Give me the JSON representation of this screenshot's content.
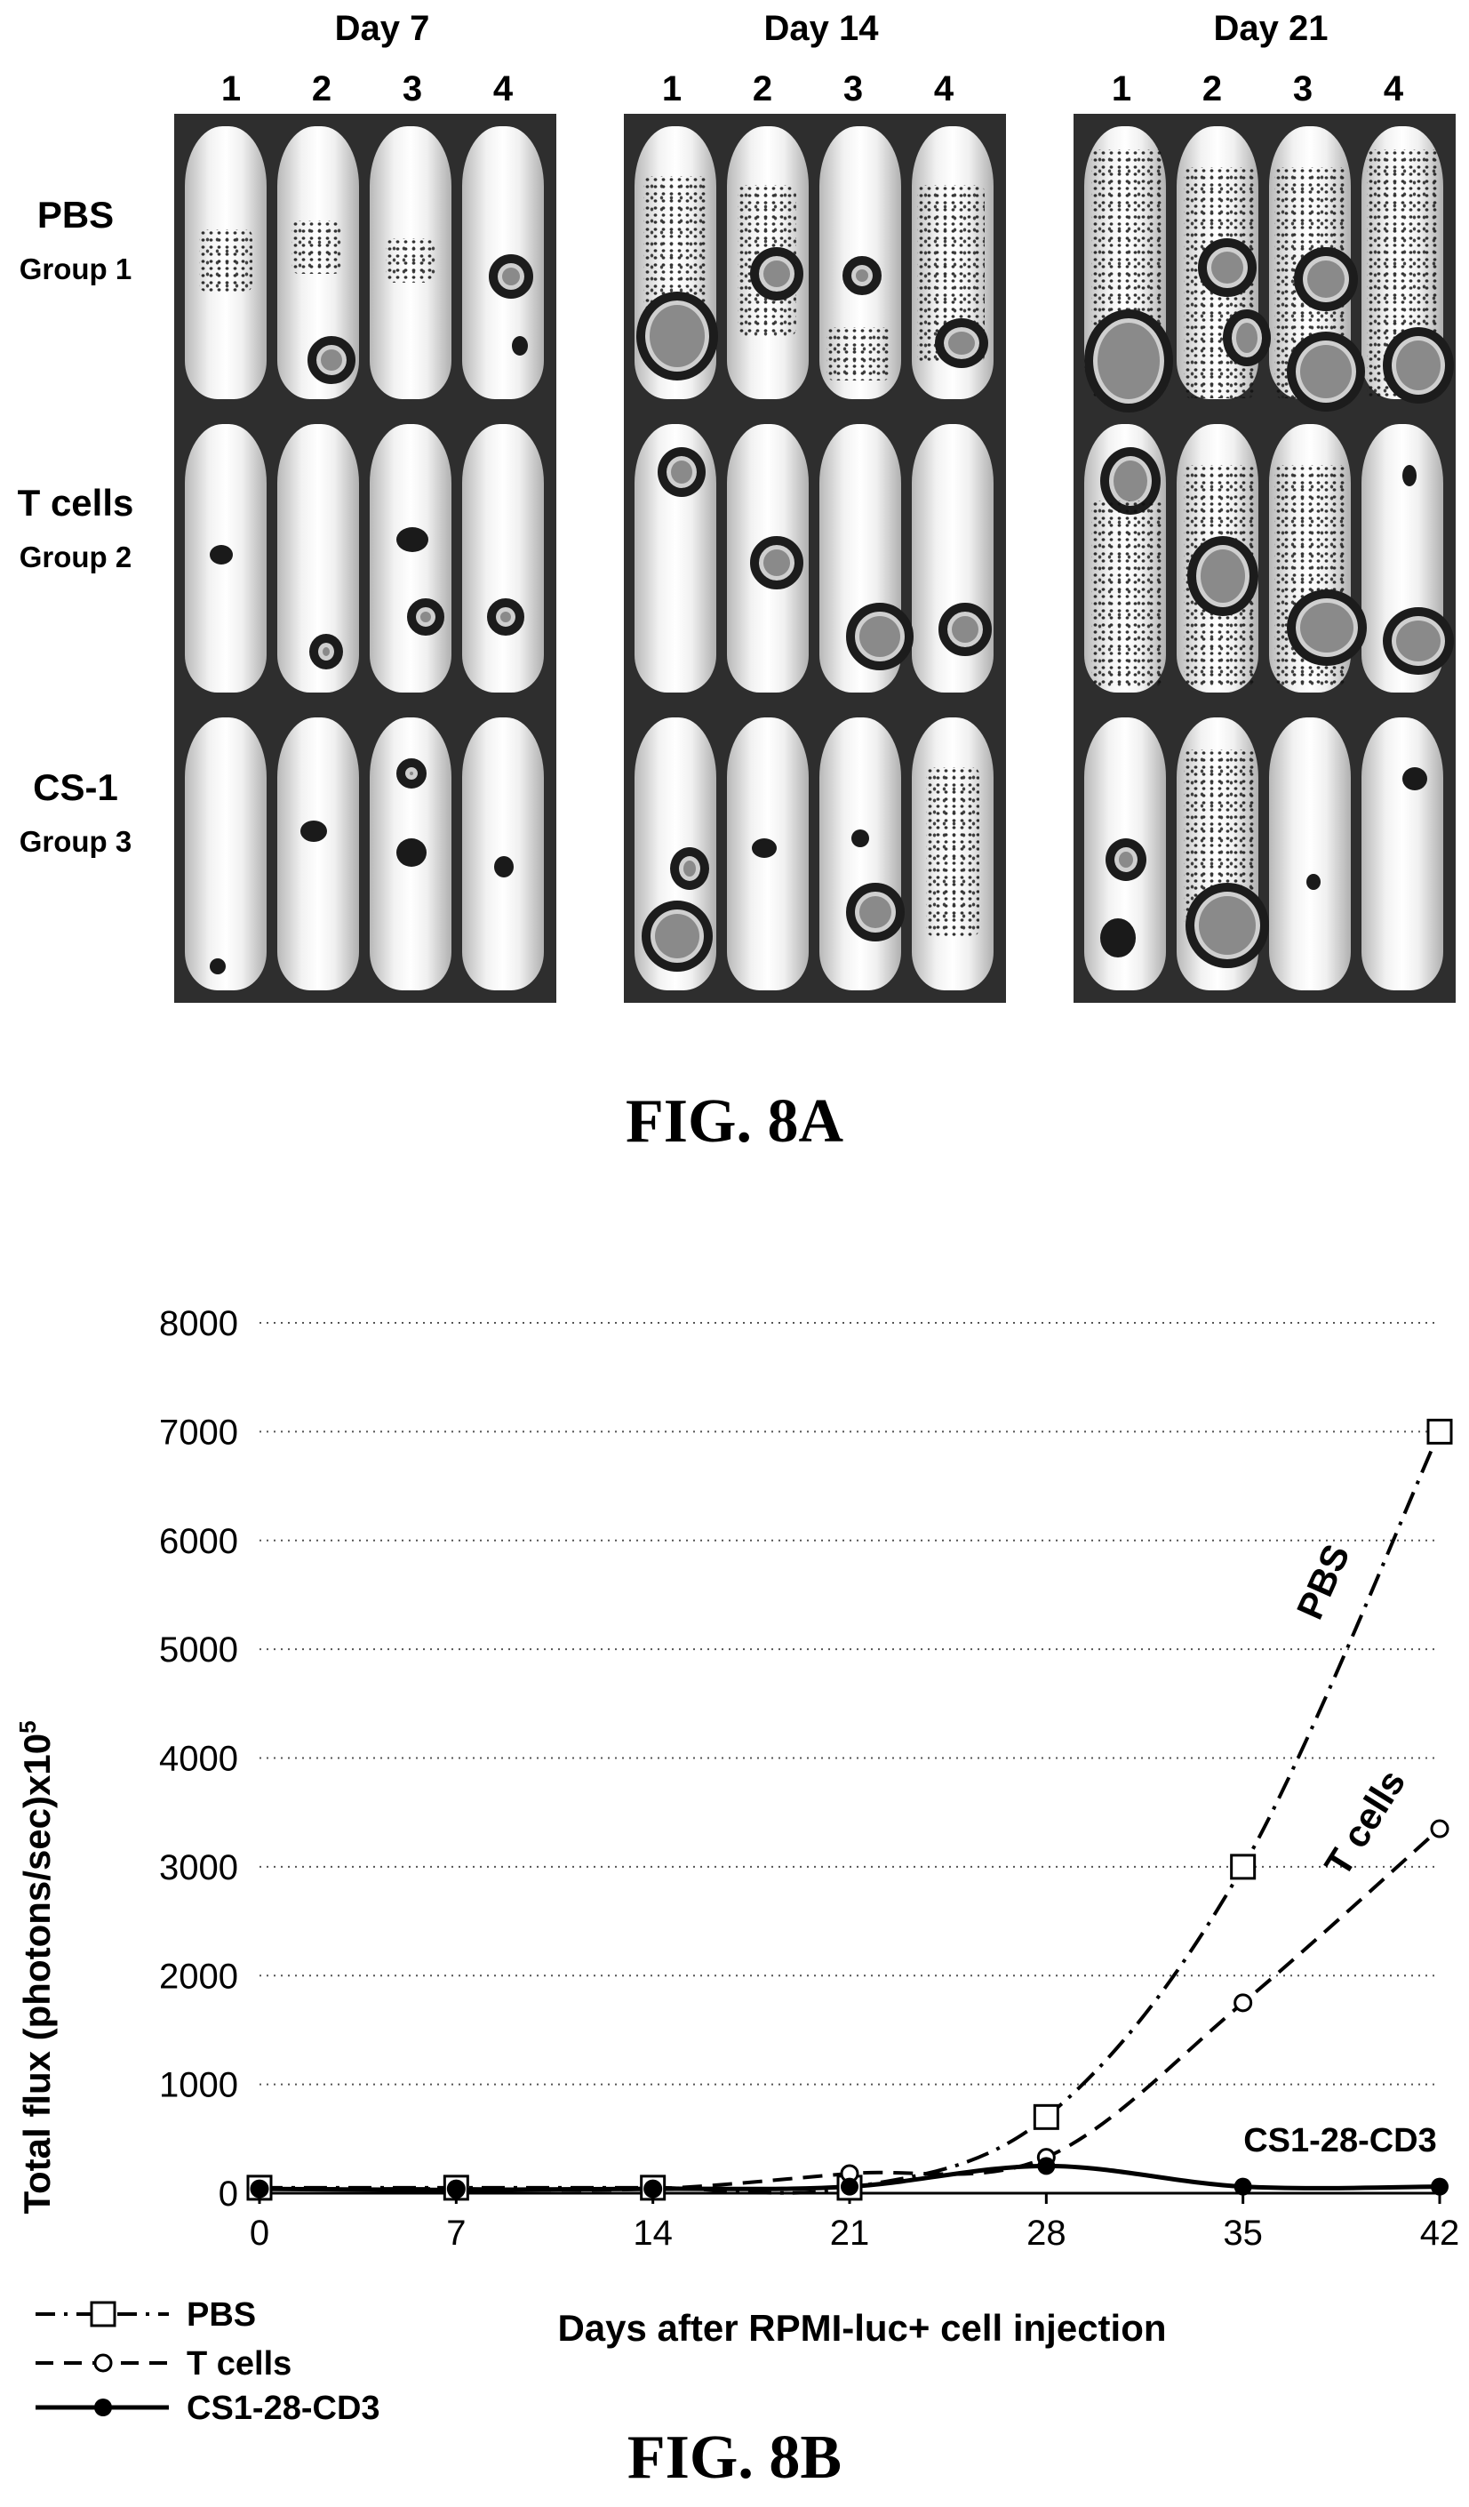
{
  "figure_a": {
    "caption": "FIG. 8A",
    "days": [
      "Day 7",
      "Day 14",
      "Day 21"
    ],
    "mouse_numbers": [
      "1",
      "2",
      "3",
      "4"
    ],
    "groups": [
      {
        "name": "PBS",
        "label": "Group 1"
      },
      {
        "name": "T cells",
        "label": "Group 2"
      },
      {
        "name": "CS-1",
        "label": "Group 3"
      }
    ]
  },
  "figure_b": {
    "caption": "FIG. 8B",
    "series_labels": {
      "pbs": "PBS",
      "tcells": "T cells",
      "cs1": "CS1-28-CD3"
    },
    "legend": [
      "PBS",
      "T cells",
      "CS1-28-CD3"
    ]
  },
  "chart_data": {
    "type": "line",
    "xlabel": "Days after RPMI-luc+ cell injection",
    "ylabel": "Total flux (photons/sec)x10",
    "ylabel_superscript": "5",
    "x": [
      0,
      7,
      14,
      21,
      28,
      35,
      42
    ],
    "xticks": [
      "0",
      "7",
      "14",
      "21",
      "28",
      "35",
      "42"
    ],
    "yticks": [
      "0",
      "1000",
      "2000",
      "3000",
      "4000",
      "5000",
      "6000",
      "7000",
      "8000"
    ],
    "ylim": [
      0,
      8000
    ],
    "xlim": [
      0,
      42
    ],
    "grid": "horizontal dotted",
    "legend_position": "bottom-left",
    "series": [
      {
        "name": "PBS",
        "values": [
          50,
          50,
          50,
          50,
          700,
          3000,
          7000
        ],
        "line": "dash-dot",
        "marker": "open square",
        "color": "#000000"
      },
      {
        "name": "T cells",
        "values": [
          40,
          40,
          40,
          180,
          330,
          1750,
          3350
        ],
        "line": "dashed",
        "marker": "open circle",
        "color": "#000000"
      },
      {
        "name": "CS1-28-CD3",
        "values": [
          40,
          30,
          40,
          60,
          250,
          60,
          60
        ],
        "line": "solid",
        "marker": "filled circle",
        "color": "#000000"
      }
    ]
  }
}
